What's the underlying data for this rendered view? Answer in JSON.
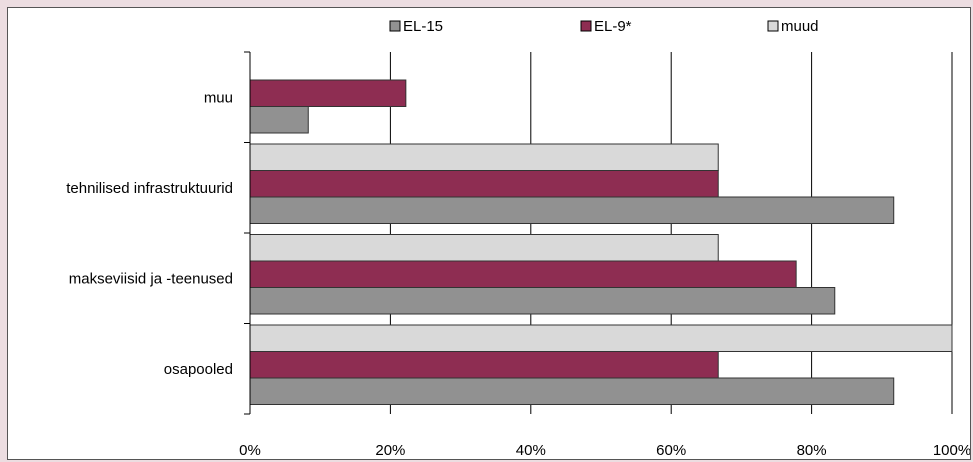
{
  "chart_data": {
    "type": "bar",
    "orientation": "horizontal",
    "categories": [
      "muu",
      "tehnilised infrastruktuurid",
      "makseviisid ja -teenused",
      "osapooled"
    ],
    "series": [
      {
        "name": "EL-15",
        "color": "#919191",
        "values": [
          8.3,
          91.7,
          83.3,
          91.7
        ]
      },
      {
        "name": "EL-9*",
        "color": "#8e2d52",
        "values": [
          22.2,
          66.7,
          77.8,
          66.7
        ]
      },
      {
        "name": "muud",
        "color": "#d9d9d9",
        "values": [
          null,
          66.7,
          66.7,
          100
        ]
      }
    ],
    "xlim": [
      0,
      100
    ],
    "xticks": [
      0,
      20,
      40,
      60,
      80,
      100
    ],
    "xtick_labels": [
      "0%",
      "20%",
      "40%",
      "60%",
      "80%",
      "100%"
    ],
    "grid": "vertical",
    "legend_position": "top"
  },
  "colors": {
    "page_background": "#ecdde1",
    "plot_background": "#ffffff",
    "gridline": "#000000",
    "bar_outline": "#333333"
  }
}
